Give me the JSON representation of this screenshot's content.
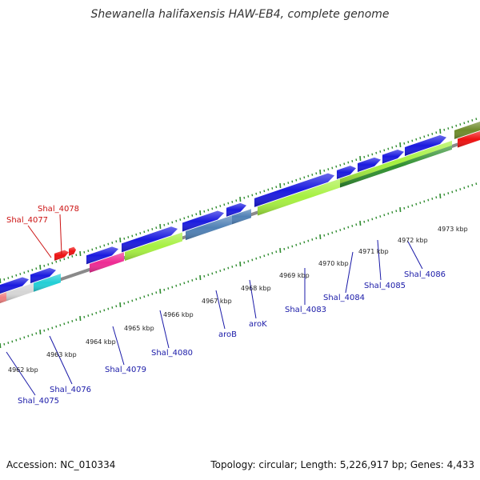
{
  "title": "Shewanella halifaxensis HAW-EB4, complete genome",
  "accession_text": "Accession: NC_010334",
  "summary_text": "Topology: circular; Length: 5,226,917 bp; Genes: 4,433",
  "colors": {
    "backbone": "#8a8a8a",
    "tick_green": "#2e8b2e",
    "cds_blue": "#1a1adf",
    "lime": "#a6f040",
    "dark_green": "#2f8f2f",
    "steel_blue": "#4f80b5",
    "magenta": "#ee2a93",
    "cyan": "#22cfd6",
    "light_gray": "#d6d6d6",
    "salmon": "#f08080",
    "olive": "#6e8b2a",
    "red": "#ee1111",
    "label_blue": "#1a1aa8",
    "label_red": "#cc1111"
  },
  "ticks": [
    {
      "label": "4962 kbp"
    },
    {
      "label": "4963 kbp"
    },
    {
      "label": "4964 kbp"
    },
    {
      "label": "4965 kbp"
    },
    {
      "label": "4966 kbp"
    },
    {
      "label": "4967 kbp"
    },
    {
      "label": "4968 kbp"
    },
    {
      "label": "4969 kbp"
    },
    {
      "label": "4970 kbp"
    },
    {
      "label": "4971 kbp"
    },
    {
      "label": "4972 kbp"
    },
    {
      "label": "4973 kbp"
    }
  ],
  "gene_labels": [
    {
      "text": "Shal_4075",
      "color": "blue"
    },
    {
      "text": "Shal_4076",
      "color": "blue"
    },
    {
      "text": "Shal_4077",
      "color": "red"
    },
    {
      "text": "Shal_4078",
      "color": "red"
    },
    {
      "text": "Shal_4079",
      "color": "blue"
    },
    {
      "text": "Shal_4080",
      "color": "blue"
    },
    {
      "text": "aroB",
      "color": "blue"
    },
    {
      "text": "aroK",
      "color": "blue"
    },
    {
      "text": "Shal_4083",
      "color": "blue"
    },
    {
      "text": "Shal_4084",
      "color": "blue"
    },
    {
      "text": "Shal_4085",
      "color": "blue"
    },
    {
      "text": "Shal_4086",
      "color": "blue"
    }
  ]
}
